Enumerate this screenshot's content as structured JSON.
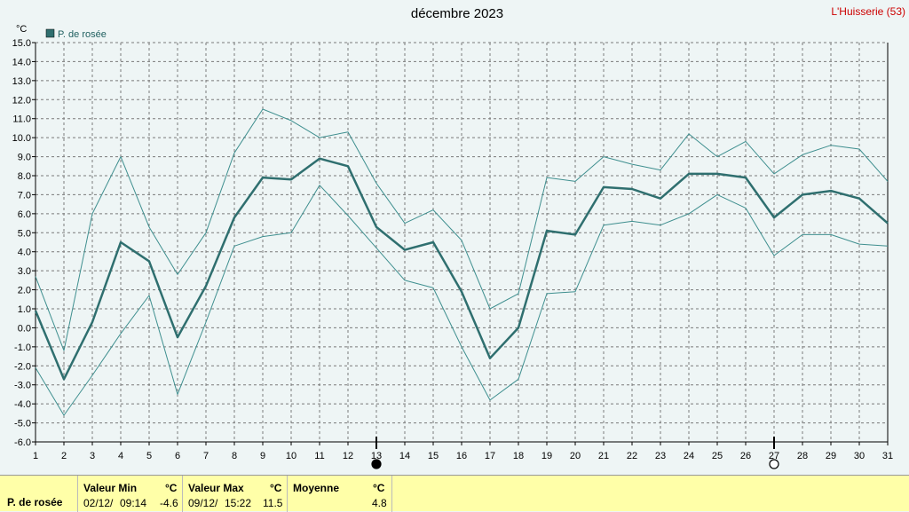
{
  "station": "L'Huisserie (53)",
  "chart_data": {
    "type": "line",
    "title": "décembre 2023",
    "ylabel": "°C",
    "legend": "P. de rosée",
    "legend_color": "#2f6f6f",
    "thin_color": "#3f8f8f",
    "grid": true,
    "ylim": [
      -6,
      15
    ],
    "yticks": [
      "-6.0",
      "-5.0",
      "-4.0",
      "-3.0",
      "-2.0",
      "-1.0",
      "0.0",
      "1.0",
      "2.0",
      "3.0",
      "4.0",
      "5.0",
      "6.0",
      "7.0",
      "8.0",
      "9.0",
      "10.0",
      "11.0",
      "12.0",
      "13.0",
      "14.0",
      "15.0"
    ],
    "x": [
      1,
      2,
      3,
      4,
      5,
      6,
      7,
      8,
      9,
      10,
      11,
      12,
      13,
      14,
      15,
      16,
      17,
      18,
      19,
      20,
      21,
      22,
      23,
      24,
      25,
      26,
      27,
      28,
      29,
      30,
      31
    ],
    "series": [
      {
        "role": "mean",
        "values": [
          0.9,
          -2.7,
          0.3,
          4.5,
          3.5,
          -0.5,
          2.2,
          5.8,
          7.9,
          7.8,
          8.9,
          8.5,
          5.3,
          4.1,
          4.5,
          1.9,
          -1.6,
          0.0,
          5.1,
          4.9,
          7.4,
          7.3,
          6.8,
          8.1,
          8.1,
          7.9,
          5.8,
          7.0,
          7.2,
          6.8,
          5.5
        ]
      },
      {
        "role": "max",
        "values": [
          2.7,
          -1.2,
          6.0,
          9.0,
          5.3,
          2.8,
          5.0,
          9.2,
          11.5,
          10.9,
          10.0,
          10.3,
          7.6,
          5.5,
          6.2,
          4.6,
          1.0,
          1.8,
          7.9,
          7.7,
          9.0,
          8.6,
          8.3,
          10.2,
          9.0,
          9.8,
          8.1,
          9.1,
          9.6,
          9.4,
          7.7
        ]
      },
      {
        "role": "min",
        "values": [
          -2.1,
          -4.6,
          -2.5,
          -0.3,
          1.7,
          -3.5,
          0.3,
          4.3,
          4.8,
          5.0,
          7.5,
          5.9,
          4.2,
          2.5,
          2.1,
          -1.0,
          -3.8,
          -2.7,
          1.8,
          1.9,
          5.4,
          5.6,
          5.4,
          6.0,
          7.0,
          6.3,
          3.8,
          4.9,
          4.9,
          4.4,
          4.3
        ]
      }
    ],
    "moon_phases": [
      {
        "day": 13,
        "phase": "new-moon"
      },
      {
        "day": 27,
        "phase": "full-moon"
      }
    ]
  },
  "stats": {
    "row_label": "P. de rosée",
    "min_header": "Valeur Min",
    "max_header": "Valeur Max",
    "avg_header": "Moyenne",
    "unit": "°C",
    "min_date": "02/12/",
    "min_time": "09:14",
    "min_value": "-4.6",
    "max_date": "09/12/",
    "max_time": "15:22",
    "max_value": "11.5",
    "avg_value": "4.8"
  }
}
